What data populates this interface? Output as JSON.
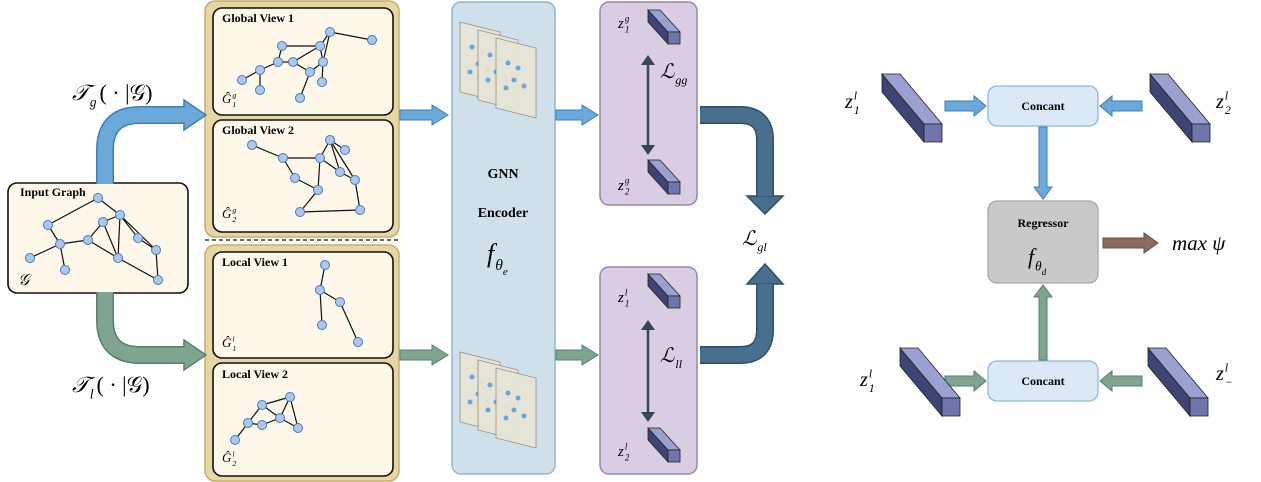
{
  "input_graph": {
    "title": "Input Graph",
    "symbol": {
      "base": "𝒢"
    }
  },
  "transforms": [
    {
      "base": "𝒯",
      "sub": "g",
      "tail": "( · |𝒢)"
    },
    {
      "base": "𝒯",
      "sub": "l",
      "tail": "( · |𝒢)"
    }
  ],
  "views": [
    {
      "title": "Global View 1",
      "symbol": {
        "base": "Ĝ",
        "sub": "1",
        "sup": "g"
      }
    },
    {
      "title": "Global View 2",
      "symbol": {
        "base": "Ĝ",
        "sub": "2",
        "sup": "g"
      }
    },
    {
      "title": "Local View 1",
      "symbol": {
        "base": "Ĝ",
        "sub": "1",
        "sup": "l"
      }
    },
    {
      "title": "Local View 2",
      "symbol": {
        "base": "Ĝ",
        "sub": "2",
        "sup": "l"
      }
    }
  ],
  "encoder": {
    "title_lines": [
      "GNN",
      "Encoder"
    ],
    "symbol": {
      "base": "f",
      "sub": "θ",
      "sub2": "e"
    }
  },
  "embeddings": [
    {
      "base": "z",
      "sub": "1",
      "sup": "g"
    },
    {
      "base": "z",
      "sub": "2",
      "sup": "g"
    },
    {
      "base": "z",
      "sub": "1",
      "sup": "l"
    },
    {
      "base": "z",
      "sub": "2",
      "sup": "l"
    }
  ],
  "losses": [
    {
      "base": "ℒ",
      "sub": "gg"
    },
    {
      "base": "ℒ",
      "sub": "ll"
    },
    {
      "base": "ℒ",
      "sub": "gl"
    }
  ],
  "regressor_panel": {
    "top_left": {
      "base": "z",
      "sub": "1",
      "sup": "l"
    },
    "top_right": {
      "base": "z",
      "sub": "2",
      "sup": "l"
    },
    "top_concat": "Concant",
    "regressor": "Regressor",
    "regressor_symbol": {
      "base": "f",
      "sub": "θ",
      "sub2": "d"
    },
    "output": "max ψ",
    "bottom_left": {
      "base": "z",
      "sub": "1",
      "sup": "l"
    },
    "bottom_right": {
      "base": "z",
      "sub": "−",
      "sup": "l"
    },
    "bottom_concat": "Concant"
  }
}
